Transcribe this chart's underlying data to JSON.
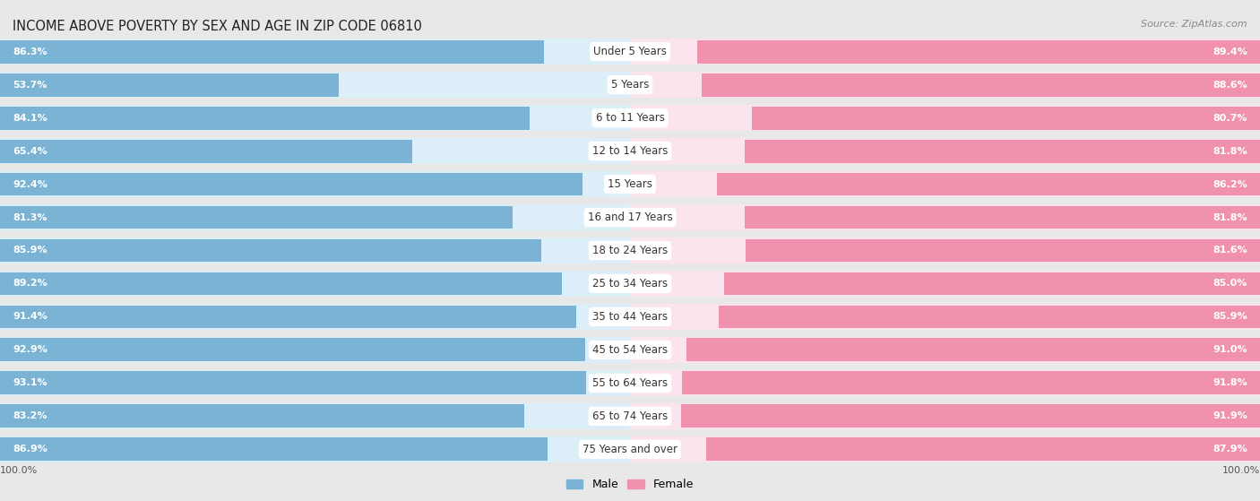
{
  "title": "INCOME ABOVE POVERTY BY SEX AND AGE IN ZIP CODE 06810",
  "source": "Source: ZipAtlas.com",
  "categories": [
    "Under 5 Years",
    "5 Years",
    "6 to 11 Years",
    "12 to 14 Years",
    "15 Years",
    "16 and 17 Years",
    "18 to 24 Years",
    "25 to 34 Years",
    "35 to 44 Years",
    "45 to 54 Years",
    "55 to 64 Years",
    "65 to 74 Years",
    "75 Years and over"
  ],
  "male_values": [
    86.3,
    53.7,
    84.1,
    65.4,
    92.4,
    81.3,
    85.9,
    89.2,
    91.4,
    92.9,
    93.1,
    83.2,
    86.9
  ],
  "female_values": [
    89.4,
    88.6,
    80.7,
    81.8,
    86.2,
    81.8,
    81.6,
    85.0,
    85.9,
    91.0,
    91.8,
    91.9,
    87.9
  ],
  "male_color": "#7ab3d4",
  "female_color": "#f092ae",
  "male_bg_color": "#dceef8",
  "female_bg_color": "#fce4ee",
  "outer_bg_color": "#e8e8e8",
  "row_bg_color": "#f5f5f5",
  "title_fontsize": 10.5,
  "source_fontsize": 8,
  "value_fontsize": 8,
  "cat_fontsize": 8.5,
  "legend_fontsize": 9,
  "max_val": 100.0
}
